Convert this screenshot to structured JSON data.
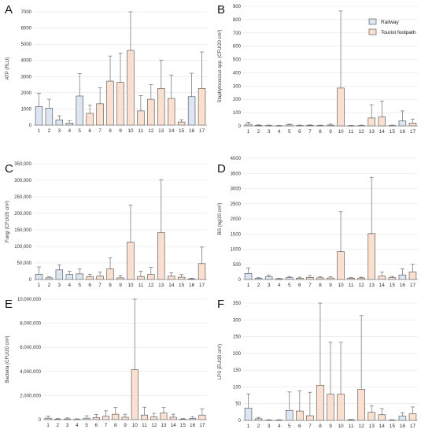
{
  "figure": {
    "colors": {
      "railway": "#dce6f2",
      "tourist": "#fbe0cf",
      "bar_edge": "#4a4a4a",
      "error_bar": "#6f6f6f"
    },
    "legend": {
      "items": [
        "Railway",
        "Tourist footpath"
      ],
      "placement": "top-right of panel B"
    }
  },
  "chart_data": [
    {
      "panel": "A",
      "type": "bar",
      "categories": [
        "1",
        "2",
        "3",
        "4",
        "5",
        "6",
        "7",
        "8",
        "9",
        "10",
        "11",
        "12",
        "13",
        "14",
        "15",
        "16",
        "17"
      ],
      "group": [
        "railway",
        "railway",
        "railway",
        "railway",
        "railway",
        "tourist",
        "tourist",
        "tourist",
        "tourist",
        "tourist",
        "tourist",
        "tourist",
        "tourist",
        "tourist",
        "tourist",
        "railway",
        "tourist"
      ],
      "values": [
        1150,
        1050,
        330,
        130,
        1800,
        730,
        1320,
        2720,
        2650,
        4620,
        880,
        1600,
        2270,
        1650,
        190,
        1760,
        2270
      ],
      "errors": [
        820,
        550,
        250,
        150,
        1380,
        500,
        1000,
        1550,
        1800,
        2600,
        950,
        900,
        1750,
        1450,
        150,
        1450,
        2250
      ],
      "ylabel": "ATP (RLU)",
      "ylim": [
        0,
        7000
      ],
      "yticks": [
        "0",
        "1000",
        "2000",
        "3000",
        "4000",
        "5000",
        "6000",
        "7000"
      ],
      "grid": true
    },
    {
      "panel": "B",
      "type": "bar",
      "categories": [
        "1",
        "2",
        "3",
        "4",
        "5",
        "6",
        "7",
        "8",
        "9",
        "10",
        "11",
        "12",
        "13",
        "14",
        "15",
        "16",
        "17"
      ],
      "group": [
        "railway",
        "railway",
        "railway",
        "railway",
        "railway",
        "tourist",
        "tourist",
        "tourist",
        "tourist",
        "tourist",
        "tourist",
        "tourist",
        "tourist",
        "tourist",
        "tourist",
        "railway",
        "tourist"
      ],
      "values": [
        12,
        4,
        3,
        2,
        8,
        3,
        4,
        3,
        6,
        285,
        2,
        3,
        60,
        68,
        3,
        38,
        22
      ],
      "errors": [
        15,
        4,
        3,
        2,
        6,
        3,
        4,
        3,
        8,
        580,
        2,
        3,
        100,
        120,
        3,
        75,
        30
      ],
      "ylabel": "Staphylococcus spp. (CFU/20 cm²)",
      "ylim": [
        0,
        900
      ],
      "yticks": [
        "0",
        "100",
        "200",
        "300",
        "400",
        "500",
        "600",
        "700",
        "800",
        "900"
      ],
      "grid": true
    },
    {
      "panel": "C",
      "type": "bar",
      "categories": [
        "1",
        "2",
        "3",
        "4",
        "5",
        "6",
        "7",
        "8",
        "9",
        "10",
        "11",
        "12",
        "13",
        "14",
        "15",
        "16",
        "17"
      ],
      "group": [
        "railway",
        "railway",
        "railway",
        "railway",
        "railway",
        "tourist",
        "tourist",
        "tourist",
        "tourist",
        "tourist",
        "tourist",
        "tourist",
        "tourist",
        "tourist",
        "tourist",
        "railway",
        "tourist"
      ],
      "values": [
        16000,
        5000,
        29000,
        15000,
        17000,
        9000,
        10000,
        32000,
        5000,
        113000,
        9000,
        15000,
        142000,
        10000,
        7000,
        2000,
        48000
      ],
      "errors": [
        22000,
        3000,
        15000,
        10000,
        15000,
        7000,
        12000,
        33000,
        7000,
        112000,
        16000,
        22000,
        160000,
        10000,
        8000,
        2000,
        50000
      ],
      "ylabel": "Fungi (CFU/20 cm²)",
      "ylim": [
        0,
        350000
      ],
      "yticks": [
        "0",
        "50,000",
        "100,000",
        "150,000",
        "200,000",
        "250,000",
        "300,000",
        "350,000"
      ],
      "grid": true
    },
    {
      "panel": "D",
      "type": "bar",
      "categories": [
        "1",
        "2",
        "3",
        "4",
        "5",
        "6",
        "7",
        "8",
        "9",
        "10",
        "11",
        "12",
        "13",
        "14",
        "15",
        "16",
        "17"
      ],
      "group": [
        "railway",
        "railway",
        "railway",
        "railway",
        "railway",
        "tourist",
        "tourist",
        "tourist",
        "tourist",
        "tourist",
        "tourist",
        "tourist",
        "tourist",
        "tourist",
        "tourist",
        "railway",
        "tourist"
      ],
      "values": [
        200,
        40,
        90,
        25,
        60,
        45,
        70,
        55,
        50,
        920,
        45,
        50,
        1510,
        110,
        60,
        150,
        250
      ],
      "errors": [
        180,
        20,
        60,
        15,
        40,
        30,
        60,
        40,
        40,
        1320,
        20,
        25,
        1860,
        130,
        40,
        200,
        250
      ],
      "ylabel": "BG (ng/20 cm²)",
      "ylim": [
        0,
        4000
      ],
      "yticks": [
        "0",
        "500",
        "1000",
        "1500",
        "2000",
        "2500",
        "3000",
        "3500",
        "4000"
      ],
      "grid": true
    },
    {
      "panel": "E",
      "type": "bar",
      "categories": [
        "1",
        "2",
        "3",
        "4",
        "5",
        "6",
        "7",
        "8",
        "9",
        "10",
        "11",
        "12",
        "13",
        "14",
        "15",
        "16",
        "17"
      ],
      "group": [
        "railway",
        "railway",
        "railway",
        "railway",
        "railway",
        "tourist",
        "tourist",
        "tourist",
        "tourist",
        "tourist",
        "tourist",
        "tourist",
        "tourist",
        "tourist",
        "tourist",
        "railway",
        "tourist"
      ],
      "values": [
        120000,
        40000,
        60000,
        30000,
        120000,
        180000,
        280000,
        450000,
        200000,
        4150000,
        380000,
        220000,
        550000,
        200000,
        40000,
        100000,
        380000
      ],
      "errors": [
        180000,
        50000,
        80000,
        40000,
        200000,
        250000,
        450000,
        550000,
        250000,
        6100000,
        650000,
        300000,
        450000,
        250000,
        50000,
        150000,
        520000
      ],
      "ylabel": "Bacteria (CFU/20 cm²)",
      "ylim": [
        0,
        10000000
      ],
      "yticks": [
        "0",
        "2,000,000",
        "4,000,000",
        "6,000,000",
        "8,000,000",
        "10,000,000"
      ],
      "grid": true
    },
    {
      "panel": "F",
      "type": "bar",
      "categories": [
        "1",
        "2",
        "3",
        "4",
        "5",
        "6",
        "7",
        "8",
        "9",
        "10",
        "11",
        "12",
        "13",
        "14",
        "15",
        "16",
        "17"
      ],
      "group": [
        "railway",
        "railway",
        "railway",
        "railway",
        "railway",
        "tourist",
        "tourist",
        "tourist",
        "tourist",
        "tourist",
        "tourist",
        "tourist",
        "tourist",
        "tourist",
        "tourist",
        "railway",
        "tourist"
      ],
      "values": [
        37,
        5,
        1,
        1,
        30,
        28,
        14,
        105,
        78,
        78,
        2,
        93,
        24,
        17,
        1,
        13,
        20
      ],
      "errors": [
        42,
        4,
        1,
        1,
        55,
        60,
        70,
        245,
        155,
        155,
        1,
        220,
        20,
        18,
        1,
        10,
        20
      ],
      "ylabel": "LPS (EU/20 cm²)",
      "ylim": [
        0,
        350
      ],
      "yticks": [
        "0",
        "50",
        "100",
        "150",
        "200",
        "250",
        "300",
        "350"
      ],
      "grid": true
    }
  ]
}
